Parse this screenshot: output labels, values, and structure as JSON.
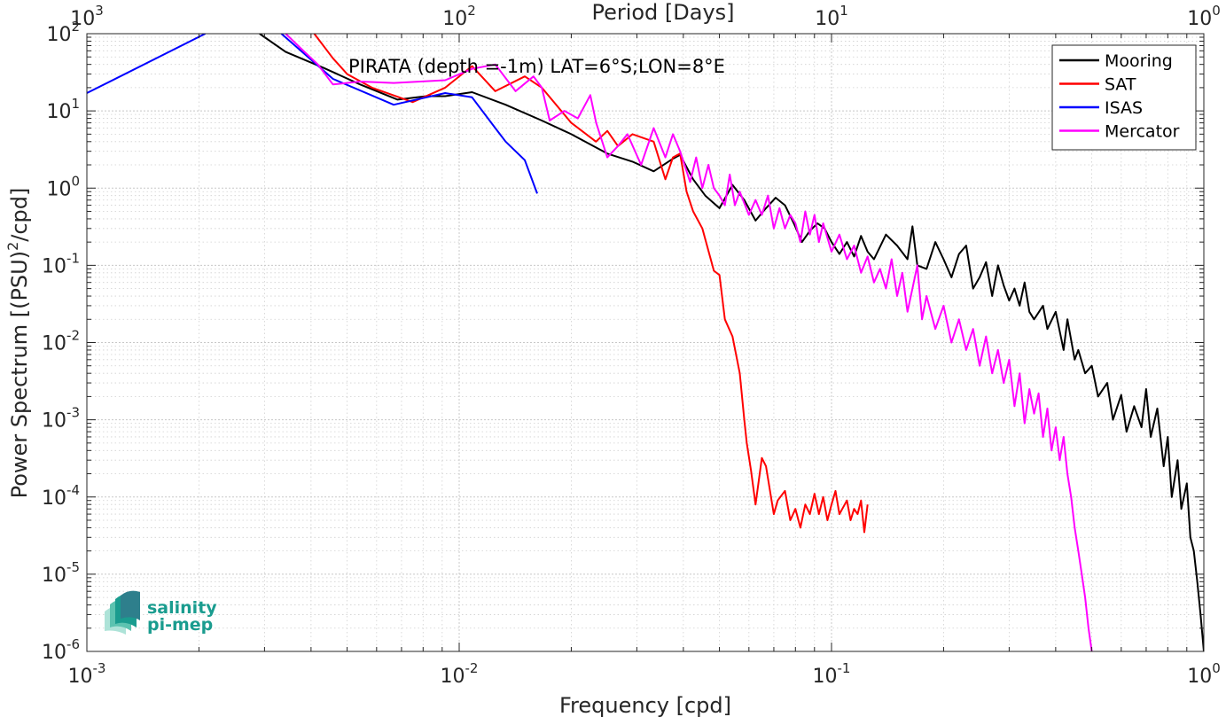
{
  "chart_data": {
    "type": "line",
    "title": "PIRATA (depth =-1m) LAT=6°S;LON=8°E",
    "xlabel": "Frequency [cpd]",
    "ylabel_base": "Power Spectrum [(PSU)",
    "ylabel_sup": "2",
    "ylabel_tail": "/cpd]",
    "top_xlabel": "Period [Days]",
    "xscale": "log",
    "yscale": "log",
    "xlim": [
      0.001,
      1
    ],
    "ylim": [
      1e-06,
      100
    ],
    "x_ticks": [
      {
        "value": 0.001,
        "base": "10",
        "exp": "-3"
      },
      {
        "value": 0.01,
        "base": "10",
        "exp": "-2"
      },
      {
        "value": 0.1,
        "base": "10",
        "exp": "-1"
      },
      {
        "value": 1,
        "base": "10",
        "exp": "0"
      }
    ],
    "top_ticks": [
      {
        "value": 0.001,
        "base": "10",
        "exp": "3"
      },
      {
        "value": 0.01,
        "base": "10",
        "exp": "2"
      },
      {
        "value": 0.1,
        "base": "10",
        "exp": "1"
      },
      {
        "value": 1,
        "base": "10",
        "exp": "0"
      }
    ],
    "y_ticks": [
      {
        "value": 100,
        "base": "10",
        "exp": "2"
      },
      {
        "value": 10,
        "base": "10",
        "exp": "1"
      },
      {
        "value": 1,
        "base": "10",
        "exp": "0"
      },
      {
        "value": 0.1,
        "base": "10",
        "exp": "-1"
      },
      {
        "value": 0.01,
        "base": "10",
        "exp": "-2"
      },
      {
        "value": 0.001,
        "base": "10",
        "exp": "-3"
      },
      {
        "value": 0.0001,
        "base": "10",
        "exp": "-4"
      },
      {
        "value": 1e-05,
        "base": "10",
        "exp": "-5"
      },
      {
        "value": 1e-06,
        "base": "10",
        "exp": "-6"
      }
    ],
    "grid": true,
    "minor_grid": true,
    "legend_position": "top-right",
    "series": [
      {
        "name": "Mooring",
        "color": "#000000",
        "points": [
          [
            0.00291,
            100
          ],
          [
            0.00342,
            58
          ],
          [
            0.00433,
            36
          ],
          [
            0.00542,
            22
          ],
          [
            0.00683,
            14
          ],
          [
            0.00817,
            15.5
          ],
          [
            0.00917,
            15.5
          ],
          [
            0.01083,
            17.5
          ],
          [
            0.01333,
            12
          ],
          [
            0.01667,
            7.5
          ],
          [
            0.02,
            5
          ],
          [
            0.025,
            2.8
          ],
          [
            0.0292,
            2.2
          ],
          [
            0.0333,
            1.65
          ],
          [
            0.0375,
            2.4
          ],
          [
            0.0392,
            2.7
          ],
          [
            0.0425,
            1.3
          ],
          [
            0.0458,
            0.8
          ],
          [
            0.05,
            0.55
          ],
          [
            0.0542,
            1.1
          ],
          [
            0.0583,
            0.7
          ],
          [
            0.0625,
            0.38
          ],
          [
            0.0667,
            0.55
          ],
          [
            0.0708,
            0.75
          ],
          [
            0.075,
            0.6
          ],
          [
            0.0792,
            0.35
          ],
          [
            0.0833,
            0.2
          ],
          [
            0.0875,
            0.28
          ],
          [
            0.0917,
            0.35
          ],
          [
            0.0958,
            0.3
          ],
          [
            0.1,
            0.2
          ],
          [
            0.105,
            0.14
          ],
          [
            0.11,
            0.2
          ],
          [
            0.115,
            0.13
          ],
          [
            0.12,
            0.24
          ],
          [
            0.125,
            0.15
          ],
          [
            0.13,
            0.12
          ],
          [
            0.14,
            0.25
          ],
          [
            0.15,
            0.18
          ],
          [
            0.16,
            0.12
          ],
          [
            0.165,
            0.32
          ],
          [
            0.17,
            0.1
          ],
          [
            0.18,
            0.09
          ],
          [
            0.19,
            0.2
          ],
          [
            0.2,
            0.12
          ],
          [
            0.21,
            0.07
          ],
          [
            0.22,
            0.14
          ],
          [
            0.23,
            0.18
          ],
          [
            0.24,
            0.05
          ],
          [
            0.25,
            0.07
          ],
          [
            0.26,
            0.11
          ],
          [
            0.27,
            0.04
          ],
          [
            0.28,
            0.1
          ],
          [
            0.29,
            0.055
          ],
          [
            0.3,
            0.035
          ],
          [
            0.31,
            0.05
          ],
          [
            0.32,
            0.03
          ],
          [
            0.33,
            0.06
          ],
          [
            0.34,
            0.025
          ],
          [
            0.35,
            0.02
          ],
          [
            0.37,
            0.03
          ],
          [
            0.38,
            0.015
          ],
          [
            0.4,
            0.025
          ],
          [
            0.42,
            0.008
          ],
          [
            0.43,
            0.02
          ],
          [
            0.45,
            0.006
          ],
          [
            0.46,
            0.008
          ],
          [
            0.48,
            0.004
          ],
          [
            0.5,
            0.005
          ],
          [
            0.52,
            0.002
          ],
          [
            0.55,
            0.003
          ],
          [
            0.57,
            0.001
          ],
          [
            0.6,
            0.0021
          ],
          [
            0.62,
            0.0007
          ],
          [
            0.65,
            0.0015
          ],
          [
            0.68,
            0.0008
          ],
          [
            0.7,
            0.0025
          ],
          [
            0.72,
            0.0006
          ],
          [
            0.75,
            0.0014
          ],
          [
            0.78,
            0.00025
          ],
          [
            0.8,
            0.0006
          ],
          [
            0.82,
            0.0001
          ],
          [
            0.85,
            0.0003
          ],
          [
            0.87,
            7e-05
          ],
          [
            0.9,
            0.00015
          ],
          [
            0.92,
            3e-05
          ],
          [
            0.94,
            2e-05
          ],
          [
            0.96,
            8e-06
          ],
          [
            0.98,
            3e-06
          ],
          [
            1.0,
            1e-06
          ]
        ]
      },
      {
        "name": "SAT",
        "color": "#ff0000",
        "points": [
          [
            0.00408,
            100
          ],
          [
            0.00458,
            48
          ],
          [
            0.005,
            30
          ],
          [
            0.00583,
            20
          ],
          [
            0.0075,
            13
          ],
          [
            0.00917,
            20
          ],
          [
            0.01083,
            38
          ],
          [
            0.0125,
            18
          ],
          [
            0.015,
            28
          ],
          [
            0.01667,
            20
          ],
          [
            0.02,
            7
          ],
          [
            0.0233,
            4
          ],
          [
            0.025,
            5.5
          ],
          [
            0.0267,
            3.5
          ],
          [
            0.0292,
            5
          ],
          [
            0.0333,
            4
          ],
          [
            0.0358,
            1.3
          ],
          [
            0.0375,
            2.5
          ],
          [
            0.0392,
            2.8
          ],
          [
            0.0408,
            0.9
          ],
          [
            0.0425,
            0.5
          ],
          [
            0.045,
            0.3
          ],
          [
            0.0483,
            0.085
          ],
          [
            0.05,
            0.075
          ],
          [
            0.0517,
            0.02
          ],
          [
            0.0542,
            0.012
          ],
          [
            0.0567,
            0.004
          ],
          [
            0.0583,
            0.001
          ],
          [
            0.0592,
            0.0005
          ],
          [
            0.0608,
            0.00022
          ],
          [
            0.0625,
            8e-05
          ],
          [
            0.065,
            0.00032
          ],
          [
            0.0667,
            0.00025
          ],
          [
            0.07,
            6e-05
          ],
          [
            0.0717,
            9e-05
          ],
          [
            0.075,
            0.00012
          ],
          [
            0.0775,
            5e-05
          ],
          [
            0.08,
            7e-05
          ],
          [
            0.0825,
            4e-05
          ],
          [
            0.085,
            8e-05
          ],
          [
            0.0875,
            6e-05
          ],
          [
            0.09,
            0.00011
          ],
          [
            0.0925,
            6e-05
          ],
          [
            0.095,
            0.0001
          ],
          [
            0.0975,
            5e-05
          ],
          [
            0.1,
            8e-05
          ],
          [
            0.1025,
            0.00012
          ],
          [
            0.105,
            6e-05
          ],
          [
            0.11,
            9e-05
          ],
          [
            0.1125,
            5e-05
          ],
          [
            0.115,
            7e-05
          ],
          [
            0.1175,
            6e-05
          ],
          [
            0.12,
            9e-05
          ],
          [
            0.1225,
            3.5e-05
          ],
          [
            0.125,
            8e-05
          ]
        ]
      },
      {
        "name": "ISAS",
        "color": "#0000ff",
        "points": [
          [
            0.001,
            17
          ],
          [
            0.00208,
            100
          ]
        ]
      },
      {
        "name": "ISAS-segment-2",
        "color": "#0000ff",
        "points": [
          [
            0.00333,
            100
          ],
          [
            0.00458,
            26
          ],
          [
            0.00667,
            12
          ],
          [
            0.00917,
            17
          ],
          [
            0.01083,
            15
          ],
          [
            0.0125,
            6
          ],
          [
            0.01333,
            4
          ],
          [
            0.015,
            2.3
          ],
          [
            0.0162,
            0.85
          ]
        ]
      },
      {
        "name": "Mercator",
        "color": "#ff00ff",
        "points": [
          [
            0.00342,
            100
          ],
          [
            0.00375,
            65
          ],
          [
            0.00417,
            40
          ],
          [
            0.00458,
            22
          ],
          [
            0.00542,
            24
          ],
          [
            0.00667,
            23
          ],
          [
            0.00917,
            25
          ],
          [
            0.01083,
            35
          ],
          [
            0.0125,
            40
          ],
          [
            0.01417,
            18
          ],
          [
            0.01583,
            28
          ],
          [
            0.01667,
            20
          ],
          [
            0.0175,
            7.5
          ],
          [
            0.01917,
            10
          ],
          [
            0.02083,
            8
          ],
          [
            0.0225,
            16
          ],
          [
            0.02333,
            7
          ],
          [
            0.025,
            2.5
          ],
          [
            0.0267,
            3.5
          ],
          [
            0.0283,
            5
          ],
          [
            0.0308,
            2
          ],
          [
            0.0333,
            6
          ],
          [
            0.0358,
            2.5
          ],
          [
            0.0375,
            5
          ],
          [
            0.0392,
            3
          ],
          [
            0.0417,
            1.2
          ],
          [
            0.0433,
            2.5
          ],
          [
            0.045,
            1.0
          ],
          [
            0.0467,
            2.0
          ],
          [
            0.0483,
            1.0
          ],
          [
            0.05,
            0.8
          ],
          [
            0.0517,
            0.6
          ],
          [
            0.0533,
            1.5
          ],
          [
            0.055,
            0.6
          ],
          [
            0.0567,
            0.9
          ],
          [
            0.06,
            0.45
          ],
          [
            0.0625,
            0.7
          ],
          [
            0.065,
            0.45
          ],
          [
            0.0675,
            0.8
          ],
          [
            0.07,
            0.3
          ],
          [
            0.0725,
            0.55
          ],
          [
            0.075,
            0.3
          ],
          [
            0.0775,
            0.45
          ],
          [
            0.08,
            0.35
          ],
          [
            0.0825,
            0.2
          ],
          [
            0.085,
            0.5
          ],
          [
            0.0875,
            0.25
          ],
          [
            0.09,
            0.45
          ],
          [
            0.0925,
            0.2
          ],
          [
            0.095,
            0.35
          ],
          [
            0.1,
            0.15
          ],
          [
            0.105,
            0.25
          ],
          [
            0.11,
            0.12
          ],
          [
            0.115,
            0.18
          ],
          [
            0.12,
            0.08
          ],
          [
            0.125,
            0.13
          ],
          [
            0.13,
            0.06
          ],
          [
            0.135,
            0.09
          ],
          [
            0.14,
            0.05
          ],
          [
            0.145,
            0.12
          ],
          [
            0.15,
            0.04
          ],
          [
            0.155,
            0.08
          ],
          [
            0.16,
            0.025
          ],
          [
            0.165,
            0.05
          ],
          [
            0.17,
            0.1
          ],
          [
            0.175,
            0.02
          ],
          [
            0.18,
            0.04
          ],
          [
            0.19,
            0.015
          ],
          [
            0.2,
            0.03
          ],
          [
            0.21,
            0.01
          ],
          [
            0.22,
            0.02
          ],
          [
            0.23,
            0.008
          ],
          [
            0.24,
            0.015
          ],
          [
            0.25,
            0.005
          ],
          [
            0.26,
            0.012
          ],
          [
            0.27,
            0.004
          ],
          [
            0.28,
            0.008
          ],
          [
            0.29,
            0.003
          ],
          [
            0.3,
            0.006
          ],
          [
            0.31,
            0.0015
          ],
          [
            0.32,
            0.004
          ],
          [
            0.33,
            0.0009
          ],
          [
            0.34,
            0.0025
          ],
          [
            0.35,
            0.0012
          ],
          [
            0.36,
            0.0022
          ],
          [
            0.37,
            0.0006
          ],
          [
            0.38,
            0.0014
          ],
          [
            0.39,
            0.0004
          ],
          [
            0.4,
            0.0008
          ],
          [
            0.41,
            0.0003
          ],
          [
            0.42,
            0.0006
          ],
          [
            0.43,
            0.0002
          ],
          [
            0.44,
            0.0001
          ],
          [
            0.45,
            4e-05
          ],
          [
            0.46,
            2e-05
          ],
          [
            0.47,
            1e-05
          ],
          [
            0.48,
            5e-06
          ],
          [
            0.49,
            2e-06
          ],
          [
            0.5,
            1e-06
          ]
        ]
      }
    ],
    "legend": [
      {
        "name": "Mooring",
        "color": "#000000"
      },
      {
        "name": "SAT",
        "color": "#ff0000"
      },
      {
        "name": "ISAS",
        "color": "#0000ff"
      },
      {
        "name": "Mercator",
        "color": "#ff00ff"
      }
    ]
  },
  "logo": {
    "line1": "salinity",
    "line2": "pi-mep",
    "color": "#1a9c8f"
  }
}
